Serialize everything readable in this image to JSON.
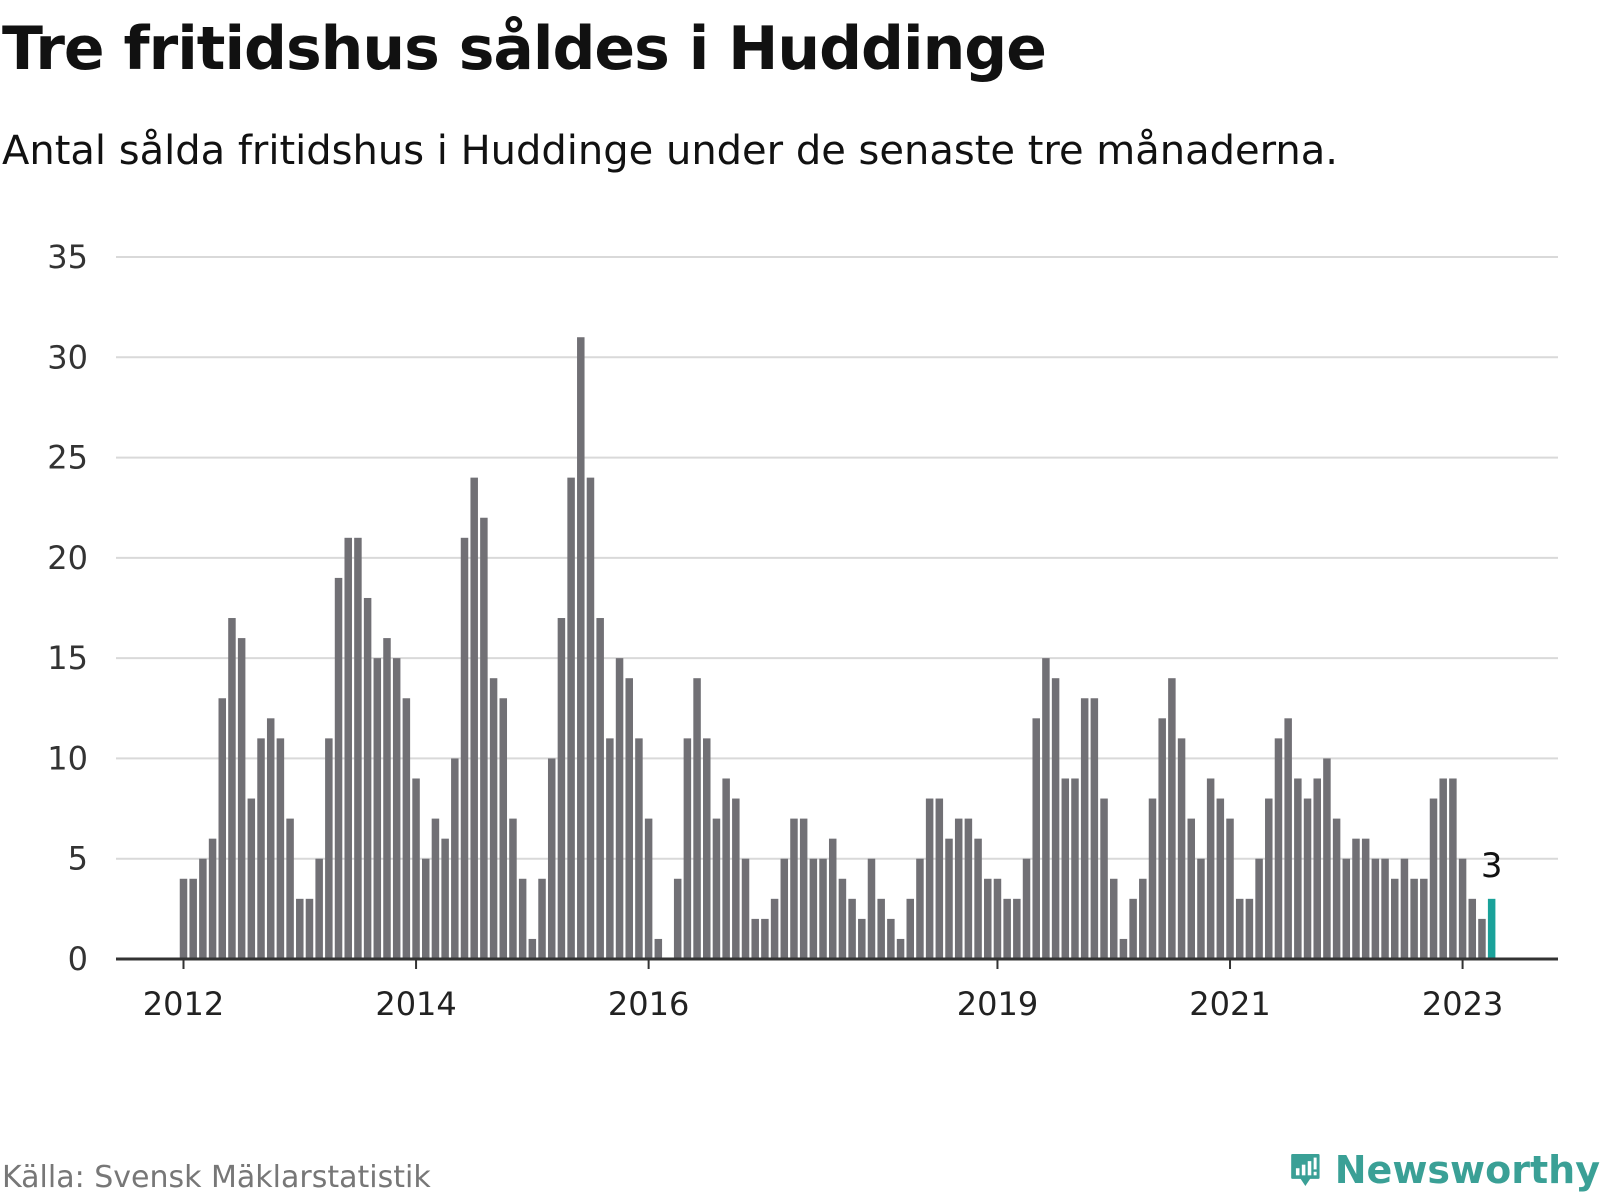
{
  "title": "Tre fritidshus såldes i Huddinge",
  "subtitle": "Antal sålda fritidshus i Huddinge under de senaste tre månaderna.",
  "source": "Källa: Svensk Mäklarstatistik",
  "brand": "Newsworthy",
  "colors": {
    "bar": "#717075",
    "highlight": "#1aa29a",
    "grid": "#d9d9d9",
    "brand": "#3aa096"
  },
  "chart_data": {
    "type": "bar",
    "title": "Tre fritidshus såldes i Huddinge",
    "subtitle": "Antal sålda fritidshus i Huddinge under de senaste tre månaderna.",
    "xlabel": "",
    "ylabel": "",
    "ylim": [
      0,
      35
    ],
    "yticks": [
      "0",
      "5",
      "10",
      "15",
      "20",
      "25",
      "30",
      "35"
    ],
    "xtick_labels": [
      {
        "label": "2012",
        "index": 0
      },
      {
        "label": "2014",
        "index": 24
      },
      {
        "label": "2016",
        "index": 48
      },
      {
        "label": "2019",
        "index": 84
      },
      {
        "label": "2021",
        "index": 108
      },
      {
        "label": "2023",
        "index": 132
      }
    ],
    "values": [
      4,
      4,
      5,
      6,
      13,
      17,
      16,
      8,
      11,
      12,
      11,
      7,
      3,
      3,
      5,
      11,
      19,
      21,
      21,
      18,
      15,
      16,
      15,
      13,
      9,
      5,
      7,
      6,
      10,
      21,
      24,
      22,
      14,
      13,
      7,
      4,
      1,
      4,
      10,
      17,
      24,
      31,
      24,
      17,
      11,
      15,
      14,
      11,
      7,
      1,
      0,
      4,
      11,
      14,
      11,
      7,
      9,
      8,
      5,
      2,
      2,
      3,
      5,
      7,
      7,
      5,
      5,
      6,
      4,
      3,
      2,
      5,
      3,
      2,
      1,
      3,
      5,
      8,
      8,
      6,
      7,
      7,
      6,
      4,
      4,
      3,
      3,
      5,
      12,
      15,
      14,
      9,
      9,
      13,
      13,
      8,
      4,
      1,
      3,
      4,
      8,
      12,
      14,
      11,
      7,
      5,
      9,
      8,
      7,
      3,
      3,
      5,
      8,
      11,
      12,
      9,
      8,
      9,
      10,
      7,
      5,
      6,
      6,
      5,
      5,
      4,
      5,
      4,
      4,
      8,
      9,
      9,
      5,
      3,
      2,
      3
    ],
    "highlight_index": 135,
    "last_value_label": "3"
  }
}
